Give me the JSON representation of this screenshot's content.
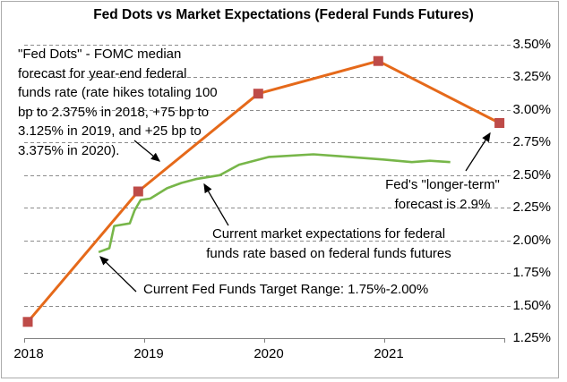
{
  "chart_data": {
    "type": "line",
    "title": "Fed Dots vs Market Expectations (Federal Funds Futures)",
    "xlabel": "",
    "ylabel": "",
    "xlim": [
      2018,
      2022
    ],
    "ylim": [
      1.25,
      3.5
    ],
    "grid": "horizontal-dashed",
    "y_axis_side": "right",
    "x_ticks": [
      {
        "value": 2018,
        "label": "2018"
      },
      {
        "value": 2019,
        "label": "2019"
      },
      {
        "value": 2020,
        "label": "2020"
      },
      {
        "value": 2021,
        "label": "2021"
      }
    ],
    "y_ticks": [
      {
        "value": 3.5,
        "label": "3.50%"
      },
      {
        "value": 3.25,
        "label": "3.25%"
      },
      {
        "value": 3.0,
        "label": "3.00%"
      },
      {
        "value": 2.75,
        "label": "2.75%"
      },
      {
        "value": 2.5,
        "label": "2.50%"
      },
      {
        "value": 2.25,
        "label": "2.25%"
      },
      {
        "value": 2.0,
        "label": "2.00%"
      },
      {
        "value": 1.75,
        "label": "1.75%"
      },
      {
        "value": 1.5,
        "label": "1.50%"
      },
      {
        "value": 1.25,
        "label": "1.25%"
      }
    ],
    "series": [
      {
        "name": "fed-dots",
        "color": "#e5691a",
        "line_width": 3,
        "marker": "square",
        "marker_color": "#be4b48",
        "marker_size": 11,
        "points": [
          [
            2018.03,
            1.375
          ],
          [
            2018.95,
            2.375
          ],
          [
            2019.95,
            3.125
          ],
          [
            2020.95,
            3.375
          ],
          [
            2021.96,
            2.9
          ]
        ]
      },
      {
        "name": "market-expectations",
        "color": "#77b649",
        "line_width": 2.6,
        "marker": "none",
        "points": [
          [
            2018.62,
            1.91
          ],
          [
            2018.71,
            1.94
          ],
          [
            2018.75,
            2.11
          ],
          [
            2018.88,
            2.13
          ],
          [
            2018.92,
            2.23
          ],
          [
            2018.97,
            2.31
          ],
          [
            2019.05,
            2.32
          ],
          [
            2019.19,
            2.4
          ],
          [
            2019.31,
            2.44
          ],
          [
            2019.43,
            2.47
          ],
          [
            2019.63,
            2.5
          ],
          [
            2019.79,
            2.58
          ],
          [
            2020.04,
            2.64
          ],
          [
            2020.41,
            2.66
          ],
          [
            2020.71,
            2.64
          ],
          [
            2020.99,
            2.62
          ],
          [
            2021.23,
            2.6
          ],
          [
            2021.38,
            2.61
          ],
          [
            2021.55,
            2.6
          ]
        ]
      }
    ],
    "annotations": [
      {
        "id": "fed-dots-note",
        "text": "\"Fed Dots\" - FOMC median\nforecast for year-end federal\nfunds rate (rate hikes totaling 100\nbp to 2.375% in 2018, +75 bp to\n3.125% in 2019, and +25 bp to\n3.375% in 2020)."
      },
      {
        "id": "market-note",
        "text": "Current market expectations for federal\nfunds rate based on federal funds futures"
      },
      {
        "id": "target-range-note",
        "text": "Current Fed Funds Target Range: 1.75%-2.00%"
      },
      {
        "id": "longer-term-note",
        "text": "Fed's \"longer-term\"\nforecast is 2.9%"
      }
    ],
    "colors": {
      "gridline": "#8c8c8c",
      "axis": "#808080",
      "arrow": "#000000",
      "frame_border": "#ababab",
      "background": "#ffffff"
    }
  }
}
